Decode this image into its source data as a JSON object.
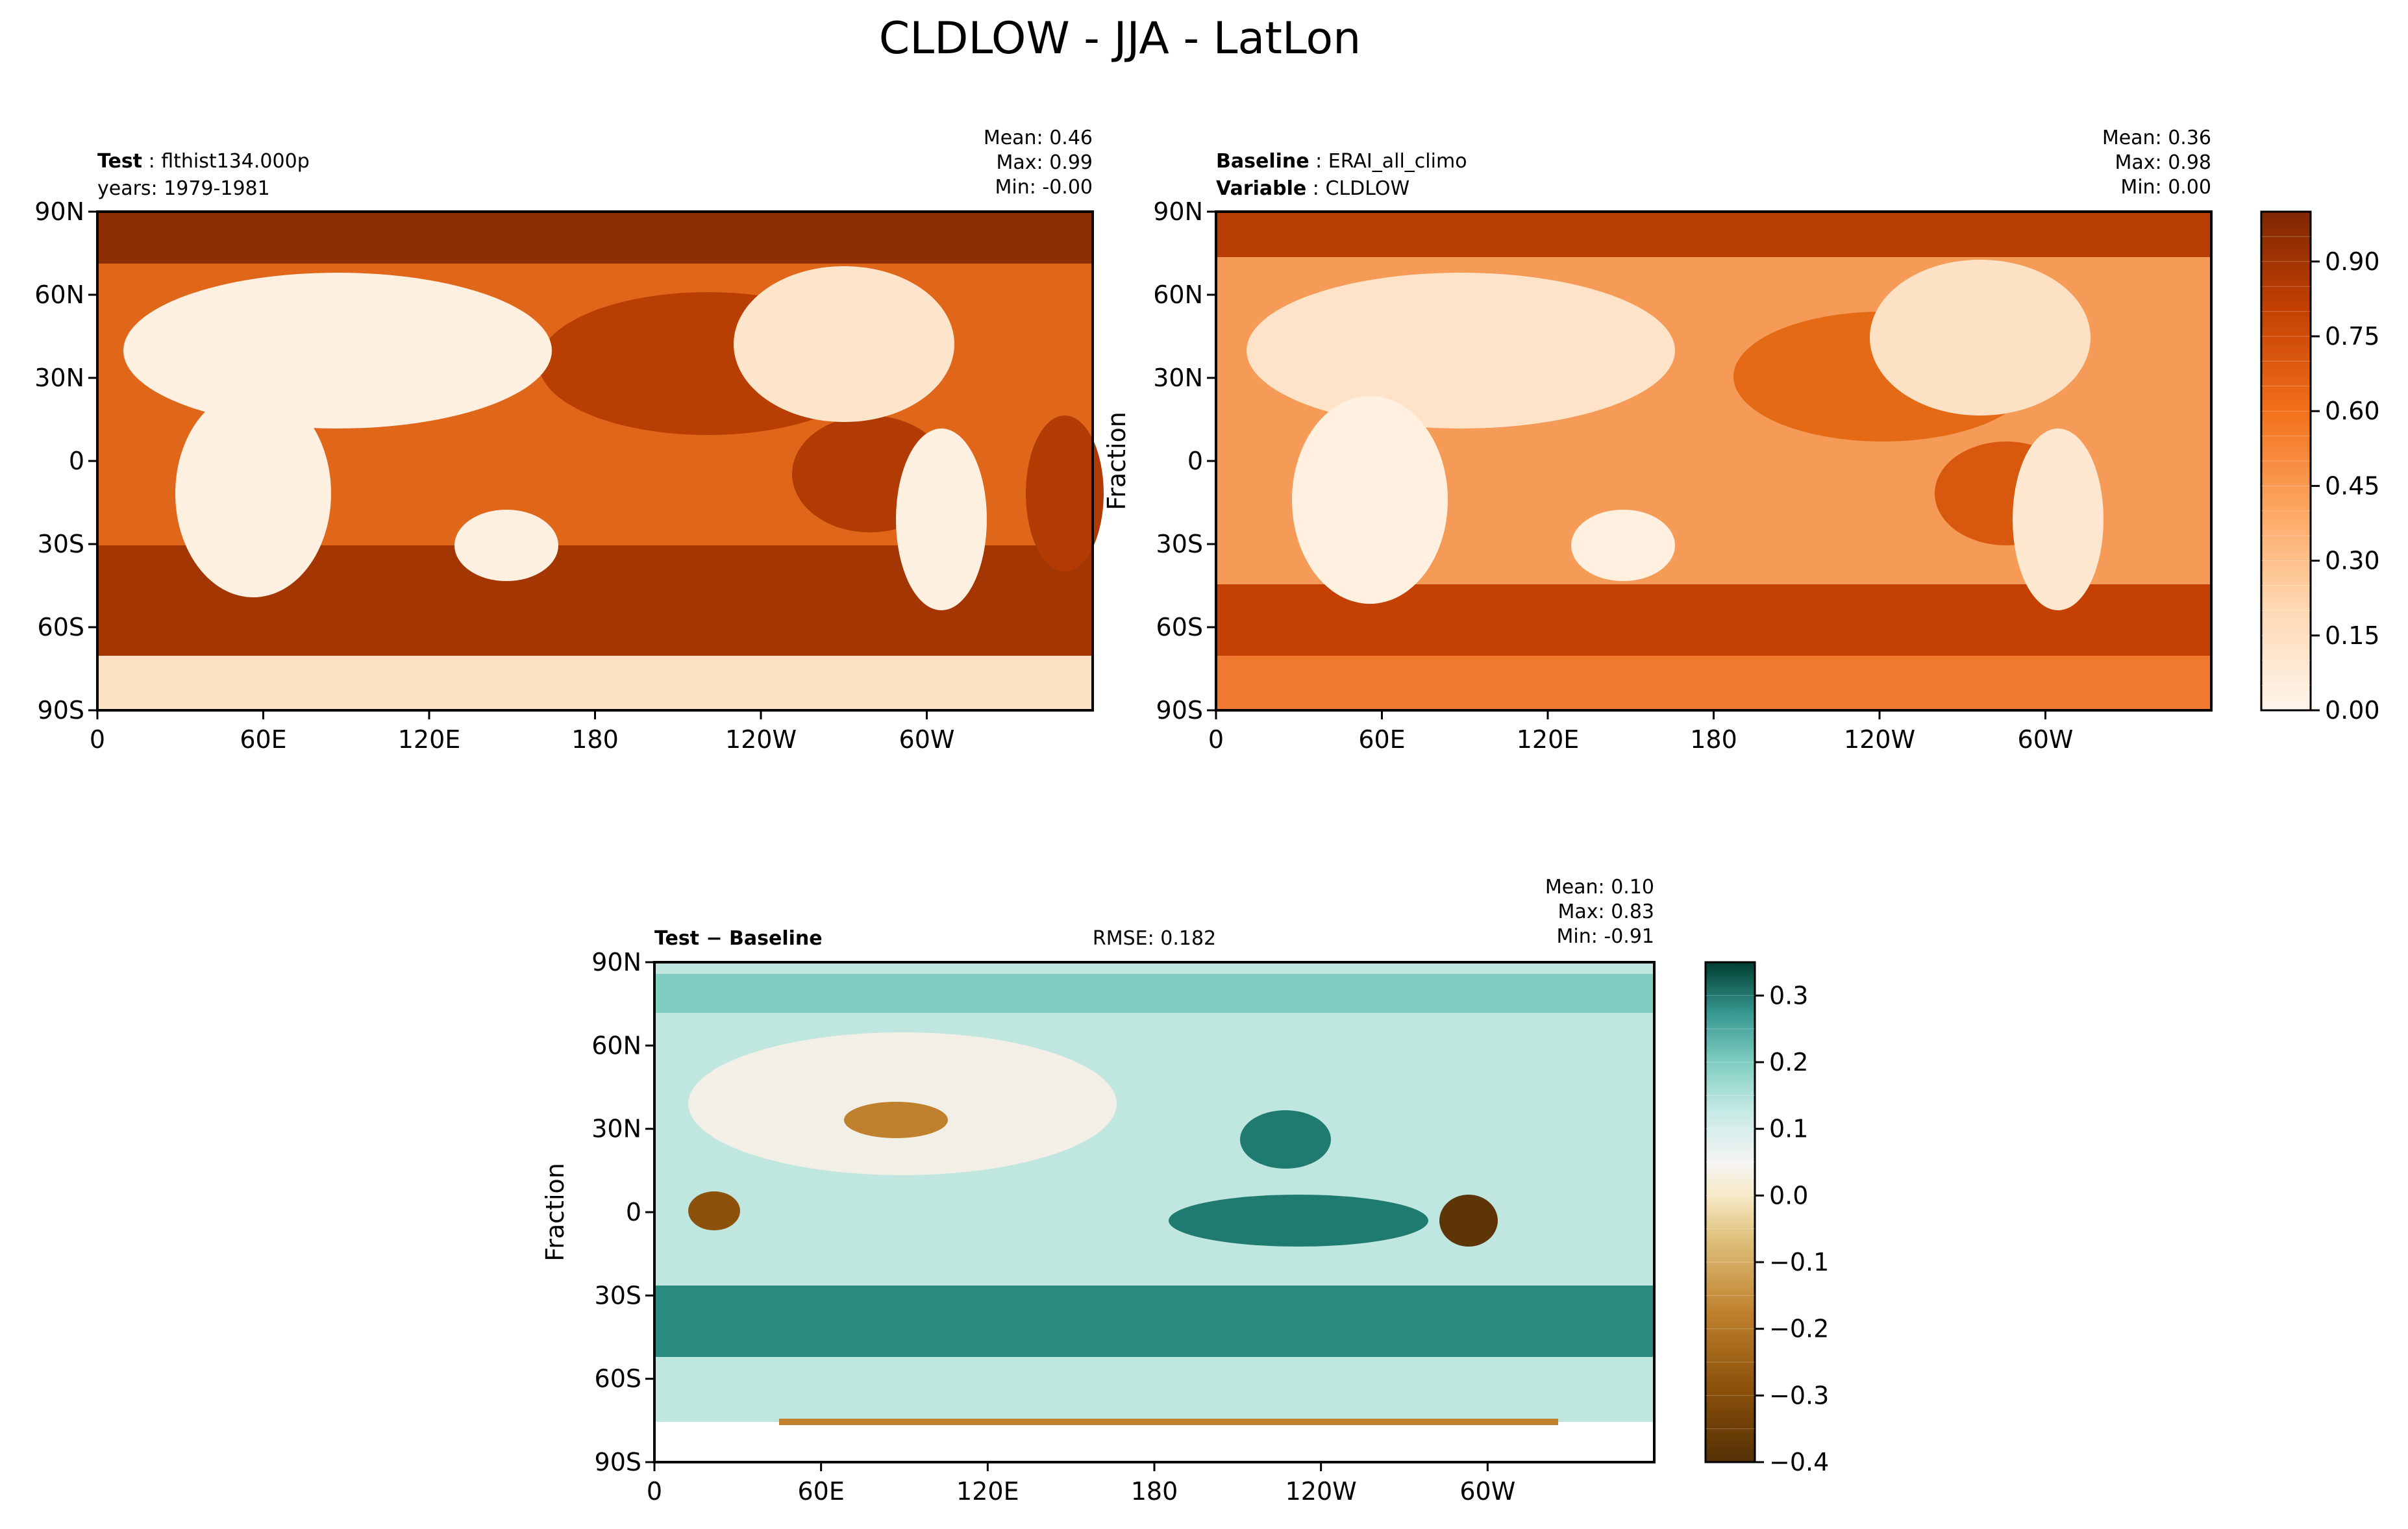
{
  "figure": {
    "title": "CLDLOW - JJA - LatLon"
  },
  "chart_data": [
    {
      "type": "heatmap",
      "panel": "test",
      "header": {
        "left_bold_1": "Test",
        "left_value_1": "flthist134.000p",
        "left_line_2": "years: 1979-1981",
        "stats": [
          "Mean:  0.46",
          "Max:  0.99",
          "Min: -0.00"
        ]
      },
      "ylabel": "",
      "x_ticks": [
        "0",
        "60E",
        "120E",
        "180",
        "120W",
        "60W"
      ],
      "y_ticks": [
        "90N",
        "60N",
        "30N",
        "0",
        "30S",
        "60S",
        "90S"
      ],
      "xlim": [
        0,
        360
      ],
      "ylim": [
        -90,
        90
      ],
      "colormap": "Oranges",
      "value_range": [
        0.0,
        0.99
      ]
    },
    {
      "type": "heatmap",
      "panel": "baseline",
      "header": {
        "left_bold_1": "Baseline",
        "left_value_1": "ERAI_all_climo",
        "left_bold_2": "Variable",
        "left_value_2": "CLDLOW",
        "stats": [
          "Mean:  0.36",
          "Max:  0.98",
          "Min:  0.00"
        ]
      },
      "ylabel": "Fraction",
      "x_ticks": [
        "0",
        "60E",
        "120E",
        "180",
        "120W",
        "60W"
      ],
      "y_ticks": [
        "90N",
        "60N",
        "30N",
        "0",
        "30S",
        "60S",
        "90S"
      ],
      "xlim": [
        0,
        360
      ],
      "ylim": [
        -90,
        90
      ],
      "colormap": "Oranges",
      "value_range": [
        0.0,
        0.98
      ],
      "colorbar": {
        "ticks": [
          "0.00",
          "0.15",
          "0.30",
          "0.45",
          "0.60",
          "0.75",
          "0.90"
        ],
        "tick_values": [
          0.0,
          0.15,
          0.3,
          0.45,
          0.6,
          0.75,
          0.9
        ],
        "range": [
          0.0,
          1.0
        ],
        "levels": 20
      }
    },
    {
      "type": "heatmap",
      "panel": "difference",
      "header": {
        "left_bold": "Test − Baseline",
        "center": "RMSE: 0.182",
        "stats": [
          "Mean:  0.10",
          "Max:  0.83",
          "Min: -0.91"
        ]
      },
      "ylabel": "Fraction",
      "x_ticks": [
        "0",
        "60E",
        "120E",
        "180",
        "120W",
        "60W"
      ],
      "y_ticks": [
        "90N",
        "60N",
        "30N",
        "0",
        "30S",
        "60S",
        "90S"
      ],
      "xlim": [
        0,
        360
      ],
      "ylim": [
        -90,
        90
      ],
      "colormap": "BrBG",
      "value_range": [
        -0.91,
        0.83
      ],
      "colorbar": {
        "ticks": [
          "0.3",
          "0.2",
          "0.1",
          "0.0",
          "−0.1",
          "−0.2",
          "−0.3",
          "−0.4"
        ],
        "tick_values": [
          0.3,
          0.2,
          0.1,
          0.0,
          -0.1,
          -0.2,
          -0.3,
          -0.4
        ],
        "range": [
          -0.4,
          0.35
        ],
        "levels": 15
      }
    }
  ]
}
